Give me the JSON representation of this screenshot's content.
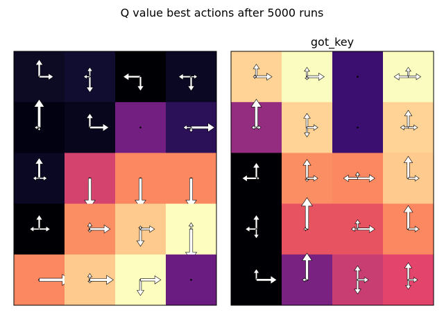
{
  "figure": {
    "title": "Q value best actions after 5000 runs"
  },
  "chart_data": [
    {
      "type": "heatmap",
      "title": "",
      "grid": false,
      "rows": 5,
      "cols": 4,
      "colormap": "magma",
      "cells": [
        {
          "row": 0,
          "col": 0,
          "color": "#0d0a24",
          "arrows": {
            "up": 0.55,
            "right": 0.45
          }
        },
        {
          "row": 0,
          "col": 1,
          "color": "#110d30",
          "arrows": {
            "up": 0.3,
            "down": 0.5,
            "left": 0.2
          }
        },
        {
          "row": 0,
          "col": 2,
          "color": "#000004",
          "arrows": {
            "left": 0.55,
            "down": 0.45
          }
        },
        {
          "row": 0,
          "col": 3,
          "color": "#0a0822",
          "arrows": {
            "left": 0.4,
            "down": 0.45,
            "right": 0.2
          }
        },
        {
          "row": 1,
          "col": 0,
          "color": "#020111",
          "arrows": {
            "up": 0.9,
            "left": 0.15,
            "down": 0.1
          }
        },
        {
          "row": 1,
          "col": 1,
          "color": "#07061c",
          "arrows": {
            "up": 0.45,
            "right": 0.6
          }
        },
        {
          "row": 1,
          "col": 2,
          "color": "#721f81",
          "arrows": {}
        },
        {
          "row": 1,
          "col": 3,
          "color": "#2a1158",
          "arrows": {
            "left": 0.25,
            "right": 0.75,
            "down": 0.15
          }
        },
        {
          "row": 2,
          "col": 0,
          "color": "#0a0822",
          "arrows": {
            "up": 0.65,
            "left": 0.2,
            "right": 0.25
          }
        },
        {
          "row": 2,
          "col": 1,
          "color": "#d3436e",
          "arrows": {
            "down": 0.95
          }
        },
        {
          "row": 2,
          "col": 2,
          "color": "#fb8861",
          "arrows": {
            "down": 0.95
          }
        },
        {
          "row": 2,
          "col": 3,
          "color": "#fb8861",
          "arrows": {
            "down": 0.95
          }
        },
        {
          "row": 3,
          "col": 0,
          "color": "#000004",
          "arrows": {
            "up": 0.45,
            "left": 0.3,
            "right": 0.35
          }
        },
        {
          "row": 3,
          "col": 1,
          "color": "#fc8e64",
          "arrows": {
            "up": 0.2,
            "down": 0.1,
            "right": 0.65
          }
        },
        {
          "row": 3,
          "col": 2,
          "color": "#feca8d",
          "arrows": {
            "down": 0.55,
            "right": 0.45,
            "up": 0.1
          }
        },
        {
          "row": 3,
          "col": 3,
          "color": "#fcfdbf",
          "arrows": {
            "up": 0.2,
            "down": 1.0
          }
        },
        {
          "row": 4,
          "col": 0,
          "color": "#fb8861",
          "arrows": {
            "right": 1.0
          }
        },
        {
          "row": 4,
          "col": 1,
          "color": "#feca8d",
          "arrows": {
            "up": 0.2,
            "down": 0.1,
            "right": 0.75
          }
        },
        {
          "row": 4,
          "col": 2,
          "color": "#fcfdbf",
          "arrows": {
            "down": 0.5,
            "right": 0.65
          }
        },
        {
          "row": 4,
          "col": 3,
          "color": "#6a1c81",
          "arrows": {}
        }
      ]
    },
    {
      "type": "heatmap",
      "title": "got_key",
      "grid": false,
      "rows": 5,
      "cols": 4,
      "colormap": "magma",
      "cells": [
        {
          "row": 0,
          "col": 0,
          "color": "#fed395",
          "arrows": {
            "up": 0.4,
            "right": 0.5,
            "left": 0.1
          }
        },
        {
          "row": 0,
          "col": 1,
          "color": "#fbfcbf",
          "arrows": {
            "up": 0.3,
            "right": 0.55,
            "down": 0.1
          }
        },
        {
          "row": 0,
          "col": 2,
          "color": "#3b0f70",
          "arrows": {}
        },
        {
          "row": 0,
          "col": 3,
          "color": "#fbfcbf",
          "arrows": {
            "up": 0.3,
            "left": 0.45,
            "right": 0.4
          }
        },
        {
          "row": 1,
          "col": 0,
          "color": "#942c80",
          "arrows": {
            "up": 0.9,
            "left": 0.15,
            "right": 0.15
          }
        },
        {
          "row": 1,
          "col": 1,
          "color": "#fed395",
          "arrows": {
            "up": 0.45,
            "down": 0.3,
            "right": 0.35
          }
        },
        {
          "row": 1,
          "col": 2,
          "color": "#3b0f70",
          "arrows": {}
        },
        {
          "row": 1,
          "col": 3,
          "color": "#fed395",
          "arrows": {
            "up": 0.55,
            "left": 0.25,
            "right": 0.3
          }
        },
        {
          "row": 2,
          "col": 0,
          "color": "#000004",
          "arrows": {
            "up": 0.5,
            "left": 0.45,
            "right": 0.1
          }
        },
        {
          "row": 2,
          "col": 1,
          "color": "#fc8e64",
          "arrows": {
            "up": 0.6,
            "down": 0.1,
            "right": 0.35
          }
        },
        {
          "row": 2,
          "col": 2,
          "color": "#fb8861",
          "arrows": {
            "up": 0.2,
            "left": 0.45,
            "right": 0.55
          }
        },
        {
          "row": 2,
          "col": 3,
          "color": "#feca8d",
          "arrows": {
            "up": 0.7,
            "right": 0.35
          }
        },
        {
          "row": 3,
          "col": 0,
          "color": "#000004",
          "arrows": {
            "up": 0.45,
            "left": 0.35,
            "down": 0.3
          }
        },
        {
          "row": 3,
          "col": 1,
          "color": "#e85362",
          "arrows": {
            "up": 1.0,
            "left": 0.1
          }
        },
        {
          "row": 3,
          "col": 2,
          "color": "#e85362",
          "arrows": {
            "up": 0.3,
            "left": 0.2,
            "right": 0.55
          }
        },
        {
          "row": 3,
          "col": 3,
          "color": "#fb8861",
          "arrows": {
            "up": 0.75,
            "right": 0.35
          }
        },
        {
          "row": 4,
          "col": 0,
          "color": "#000004",
          "arrows": {
            "up": 0.35,
            "right": 0.65
          }
        },
        {
          "row": 4,
          "col": 1,
          "color": "#7a2282",
          "arrows": {
            "up": 0.85,
            "left": 0.15
          }
        },
        {
          "row": 4,
          "col": 2,
          "color": "#c83e73",
          "arrows": {
            "up": 0.45,
            "down": 0.45,
            "right": 0.35
          }
        },
        {
          "row": 4,
          "col": 3,
          "color": "#e3446b",
          "arrows": {
            "up": 0.55,
            "down": 0.3,
            "right": 0.3
          }
        }
      ]
    }
  ]
}
